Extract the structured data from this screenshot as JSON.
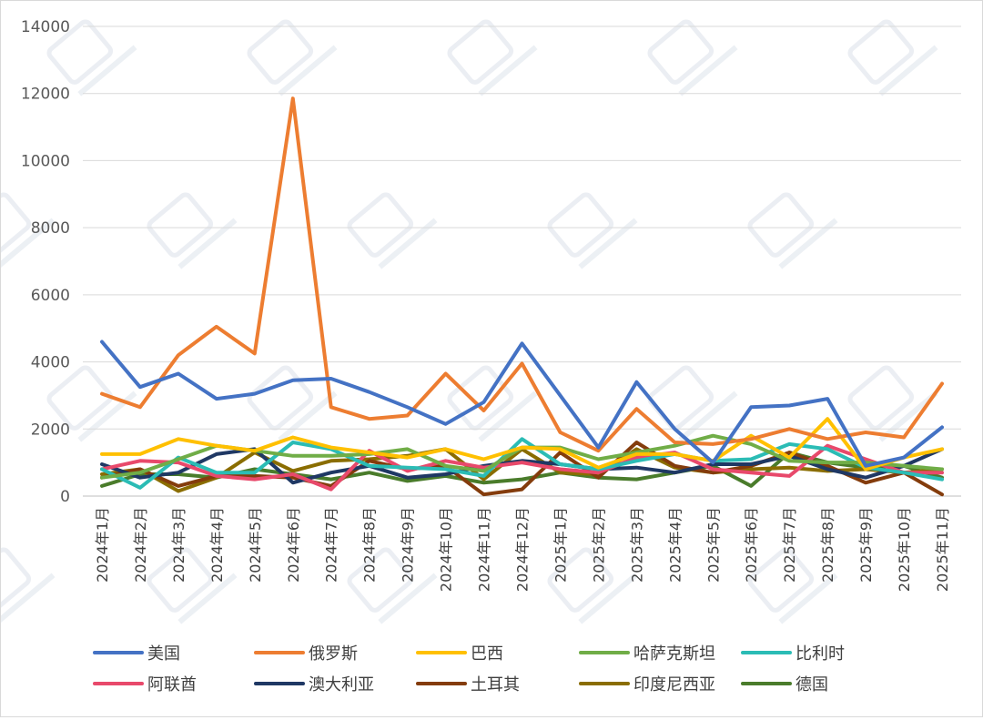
{
  "chart_data": {
    "type": "line",
    "title": "",
    "xlabel": "",
    "ylabel": "",
    "ylim": [
      0,
      14000
    ],
    "yticks": [
      0,
      2000,
      4000,
      6000,
      8000,
      10000,
      12000,
      14000
    ],
    "grid": "horizontal",
    "legend_position": "bottom",
    "categories": [
      "2024年1月",
      "2024年2月",
      "2024年3月",
      "2024年4月",
      "2024年5月",
      "2024年6月",
      "2024年7月",
      "2024年8月",
      "2024年9月",
      "2024年10月",
      "2024年11月",
      "2024年12月",
      "2025年1月",
      "2025年2月",
      "2025年3月",
      "2025年4月",
      "2025年5月",
      "2025年6月",
      "2025年7月",
      "2025年8月",
      "2025年9月",
      "2025年10月",
      "2025年11月"
    ],
    "series": [
      {
        "name": "美国",
        "color": "#4472c4",
        "values": [
          4600,
          3250,
          3650,
          2900,
          3050,
          3450,
          3500,
          3100,
          2650,
          2150,
          2800,
          4550,
          3000,
          1450,
          3400,
          2000,
          1000,
          2650,
          2700,
          2900,
          900,
          1150,
          2050
        ]
      },
      {
        "name": "俄罗斯",
        "color": "#ed7d31",
        "values": [
          3050,
          2650,
          4200,
          5050,
          4250,
          11850,
          2650,
          2300,
          2400,
          3650,
          2550,
          3950,
          1900,
          1350,
          2600,
          1600,
          1550,
          1700,
          2000,
          1700,
          1900,
          1750,
          3350
        ]
      },
      {
        "name": "巴西",
        "color": "#ffc000",
        "values": [
          1250,
          1250,
          1700,
          1500,
          1350,
          1750,
          1450,
          1300,
          1150,
          1400,
          1100,
          1450,
          1400,
          850,
          1250,
          1250,
          1050,
          1800,
          1150,
          2300,
          800,
          1150,
          1400
        ]
      },
      {
        "name": "哈萨克斯坦",
        "color": "#70ad47",
        "values": [
          550,
          700,
          1100,
          1500,
          1350,
          1200,
          1200,
          1250,
          1400,
          900,
          750,
          1450,
          1450,
          1100,
          1300,
          1500,
          1800,
          1550,
          1050,
          1000,
          1000,
          900,
          800
        ]
      },
      {
        "name": "比利时",
        "color": "#2bbcb5",
        "values": [
          800,
          250,
          1150,
          700,
          700,
          1600,
          1400,
          900,
          850,
          800,
          600,
          1700,
          950,
          800,
          1050,
          1250,
          1050,
          1100,
          1550,
          1400,
          850,
          700,
          500
        ]
      },
      {
        "name": "阿联酋",
        "color": "#e8496b",
        "values": [
          800,
          1050,
          1000,
          600,
          500,
          650,
          200,
          1350,
          750,
          1050,
          850,
          1000,
          800,
          700,
          1150,
          1300,
          800,
          700,
          600,
          1500,
          1100,
          700,
          700
        ]
      },
      {
        "name": "澳大利亚",
        "color": "#1f3864",
        "values": [
          950,
          550,
          700,
          1250,
          1400,
          400,
          700,
          900,
          550,
          650,
          900,
          1050,
          950,
          800,
          850,
          700,
          950,
          950,
          1200,
          800,
          550,
          900,
          1400
        ]
      },
      {
        "name": "土耳其",
        "color": "#843c0c",
        "values": [
          550,
          800,
          300,
          600,
          600,
          550,
          300,
          1050,
          800,
          900,
          50,
          200,
          1300,
          550,
          1600,
          900,
          700,
          900,
          1300,
          900,
          400,
          700,
          50
        ]
      },
      {
        "name": "印度尼西亚",
        "color": "#8a6d00",
        "values": [
          650,
          800,
          150,
          550,
          1300,
          750,
          1050,
          1100,
          1200,
          1400,
          500,
          1400,
          700,
          650,
          1400,
          850,
          700,
          800,
          850,
          750,
          800,
          700,
          800
        ]
      },
      {
        "name": "德国",
        "color": "#4a7c2b",
        "values": [
          300,
          650,
          650,
          550,
          800,
          650,
          500,
          700,
          450,
          600,
          400,
          500,
          700,
          550,
          500,
          700,
          900,
          300,
          1300,
          1000,
          850,
          900,
          550
        ]
      }
    ]
  }
}
